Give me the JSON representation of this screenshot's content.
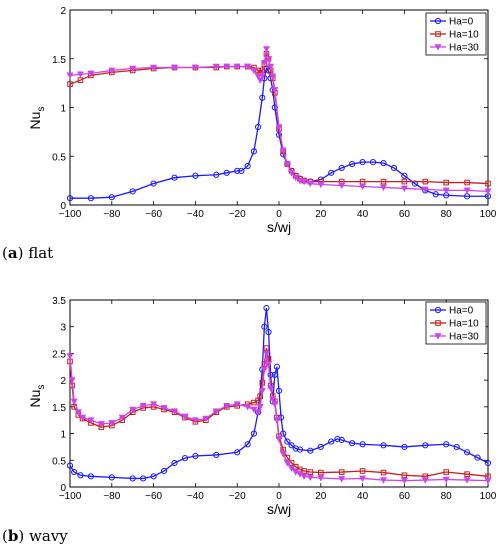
{
  "chart_data": [
    {
      "type": "line",
      "caption_letter": "a",
      "caption_text": "flat",
      "xlabel": "s/wj",
      "ylabel": "Nu",
      "ylabel_sub": "s",
      "xlim": [
        -100,
        100
      ],
      "ylim": [
        0,
        2
      ],
      "xticks": [
        "−100",
        "−80",
        "−60",
        "−40",
        "−20",
        "0",
        "20",
        "40",
        "60",
        "80",
        "100"
      ],
      "yticks": [
        "0",
        "0.5",
        "1",
        "1.5",
        "2"
      ],
      "legend_position": "top-right",
      "series": [
        {
          "name": "Ha=0",
          "color": "#1a1aff",
          "marker": "circle",
          "x": [
            -100,
            -90,
            -80,
            -70,
            -60,
            -50,
            -40,
            -30,
            -25,
            -20,
            -18,
            -15,
            -12,
            -10,
            -8,
            -7,
            -6,
            -5,
            -4,
            -3,
            -2,
            0,
            2,
            4,
            6,
            8,
            10,
            12,
            15,
            20,
            25,
            30,
            35,
            40,
            45,
            50,
            55,
            60,
            65,
            70,
            75,
            80,
            90,
            100
          ],
          "values": [
            0.07,
            0.07,
            0.08,
            0.14,
            0.22,
            0.28,
            0.3,
            0.31,
            0.33,
            0.35,
            0.35,
            0.4,
            0.55,
            0.8,
            1.1,
            1.3,
            1.4,
            1.38,
            1.3,
            1.18,
            1.0,
            0.72,
            0.52,
            0.42,
            0.35,
            0.3,
            0.27,
            0.25,
            0.24,
            0.26,
            0.33,
            0.38,
            0.42,
            0.44,
            0.44,
            0.43,
            0.38,
            0.3,
            0.22,
            0.15,
            0.11,
            0.1,
            0.09,
            0.09
          ]
        },
        {
          "name": "Ha=10",
          "color": "#c8201e",
          "marker": "square",
          "x": [
            -100,
            -95,
            -90,
            -80,
            -70,
            -60,
            -50,
            -40,
            -30,
            -25,
            -20,
            -15,
            -12,
            -10,
            -9,
            -8,
            -7,
            -6,
            -5,
            -4,
            -3,
            -2,
            0,
            2,
            4,
            6,
            8,
            10,
            12,
            15,
            20,
            30,
            40,
            50,
            60,
            70,
            80,
            90,
            100
          ],
          "values": [
            1.24,
            1.28,
            1.33,
            1.36,
            1.38,
            1.4,
            1.41,
            1.41,
            1.41,
            1.42,
            1.42,
            1.42,
            1.41,
            1.38,
            1.36,
            1.38,
            1.44,
            1.55,
            1.5,
            1.38,
            1.3,
            1.15,
            0.78,
            0.55,
            0.42,
            0.35,
            0.3,
            0.27,
            0.25,
            0.24,
            0.24,
            0.24,
            0.24,
            0.24,
            0.24,
            0.24,
            0.23,
            0.23,
            0.22
          ]
        },
        {
          "name": "Ha=30",
          "color": "#cc44ee",
          "marker": "triangle-down",
          "x": [
            -100,
            -95,
            -90,
            -80,
            -70,
            -60,
            -50,
            -40,
            -30,
            -25,
            -20,
            -15,
            -12,
            -10,
            -9,
            -8,
            -7,
            -6,
            -5,
            -4,
            -3,
            -2,
            0,
            2,
            4,
            6,
            8,
            10,
            12,
            15,
            20,
            30,
            40,
            50,
            60,
            70,
            80,
            90,
            100
          ],
          "values": [
            1.33,
            1.34,
            1.35,
            1.38,
            1.4,
            1.41,
            1.41,
            1.41,
            1.42,
            1.42,
            1.42,
            1.42,
            1.38,
            1.32,
            1.28,
            1.32,
            1.46,
            1.6,
            1.5,
            1.42,
            1.32,
            1.18,
            0.8,
            0.56,
            0.42,
            0.33,
            0.28,
            0.25,
            0.24,
            0.22,
            0.21,
            0.2,
            0.19,
            0.18,
            0.17,
            0.16,
            0.15,
            0.15,
            0.14
          ]
        }
      ]
    },
    {
      "type": "line",
      "caption_letter": "b",
      "caption_text": "wavy",
      "xlabel": "s/wj",
      "ylabel": "Nu",
      "ylabel_sub": "s",
      "xlim": [
        -100,
        100
      ],
      "ylim": [
        0,
        3.5
      ],
      "xticks": [
        "−100",
        "−80",
        "−60",
        "−40",
        "−20",
        "0",
        "20",
        "40",
        "60",
        "80",
        "100"
      ],
      "yticks": [
        "0",
        "0.5",
        "1",
        "1.5",
        "2",
        "2.5",
        "3",
        "3.5"
      ],
      "legend_position": "top-right",
      "series": [
        {
          "name": "Ha=0",
          "color": "#1a1aff",
          "marker": "circle",
          "x": [
            -100,
            -98,
            -95,
            -90,
            -80,
            -70,
            -65,
            -60,
            -55,
            -50,
            -45,
            -40,
            -30,
            -20,
            -15,
            -12,
            -10,
            -8,
            -7,
            -6,
            -5,
            -4,
            -3,
            -2,
            -1,
            0,
            1,
            2,
            4,
            6,
            8,
            10,
            15,
            20,
            25,
            28,
            30,
            35,
            40,
            50,
            60,
            70,
            80,
            85,
            90,
            95,
            100
          ],
          "values": [
            0.4,
            0.28,
            0.22,
            0.2,
            0.18,
            0.16,
            0.16,
            0.2,
            0.3,
            0.45,
            0.54,
            0.58,
            0.6,
            0.65,
            0.8,
            1.0,
            1.4,
            2.2,
            3.0,
            3.35,
            2.9,
            2.1,
            1.6,
            2.1,
            2.25,
            1.8,
            1.3,
            1.0,
            0.85,
            0.78,
            0.72,
            0.7,
            0.68,
            0.75,
            0.85,
            0.9,
            0.88,
            0.82,
            0.8,
            0.78,
            0.75,
            0.78,
            0.8,
            0.75,
            0.65,
            0.55,
            0.45
          ]
        },
        {
          "name": "Ha=10",
          "color": "#c8201e",
          "marker": "square",
          "x": [
            -100,
            -99,
            -98,
            -96,
            -94,
            -90,
            -85,
            -80,
            -75,
            -70,
            -65,
            -60,
            -55,
            -50,
            -45,
            -40,
            -35,
            -30,
            -25,
            -20,
            -15,
            -12,
            -10,
            -9,
            -8,
            -7,
            -6,
            -5,
            -4,
            -3,
            -2,
            -1,
            0,
            2,
            4,
            6,
            8,
            10,
            12,
            15,
            20,
            30,
            40,
            50,
            60,
            70,
            80,
            90,
            100
          ],
          "values": [
            2.35,
            1.9,
            1.5,
            1.35,
            1.28,
            1.2,
            1.12,
            1.15,
            1.25,
            1.4,
            1.48,
            1.5,
            1.45,
            1.4,
            1.3,
            1.22,
            1.25,
            1.4,
            1.5,
            1.52,
            1.55,
            1.58,
            1.62,
            1.7,
            1.95,
            2.3,
            2.6,
            2.4,
            1.9,
            1.7,
            1.6,
            1.3,
            0.95,
            0.7,
            0.55,
            0.45,
            0.38,
            0.33,
            0.3,
            0.28,
            0.27,
            0.28,
            0.3,
            0.27,
            0.22,
            0.2,
            0.28,
            0.24,
            0.2
          ]
        },
        {
          "name": "Ha=30",
          "color": "#cc44ee",
          "marker": "triangle-down",
          "x": [
            -100,
            -99,
            -98,
            -96,
            -94,
            -90,
            -85,
            -80,
            -75,
            -70,
            -65,
            -60,
            -55,
            -50,
            -45,
            -40,
            -35,
            -30,
            -25,
            -20,
            -15,
            -12,
            -10,
            -9,
            -8,
            -7,
            -6,
            -5,
            -4,
            -3,
            -2,
            -1,
            0,
            2,
            4,
            6,
            8,
            10,
            12,
            15,
            20,
            30,
            40,
            50,
            60,
            70,
            80,
            90,
            100
          ],
          "values": [
            2.45,
            2.0,
            1.6,
            1.4,
            1.3,
            1.25,
            1.18,
            1.2,
            1.3,
            1.45,
            1.52,
            1.55,
            1.48,
            1.42,
            1.32,
            1.25,
            1.28,
            1.42,
            1.52,
            1.55,
            1.5,
            1.45,
            1.4,
            1.5,
            1.8,
            2.2,
            2.5,
            2.3,
            1.85,
            1.65,
            1.55,
            1.25,
            0.9,
            0.62,
            0.45,
            0.35,
            0.28,
            0.24,
            0.2,
            0.18,
            0.17,
            0.15,
            0.16,
            0.13,
            0.12,
            0.13,
            0.14,
            0.13,
            0.12
          ]
        }
      ]
    }
  ]
}
